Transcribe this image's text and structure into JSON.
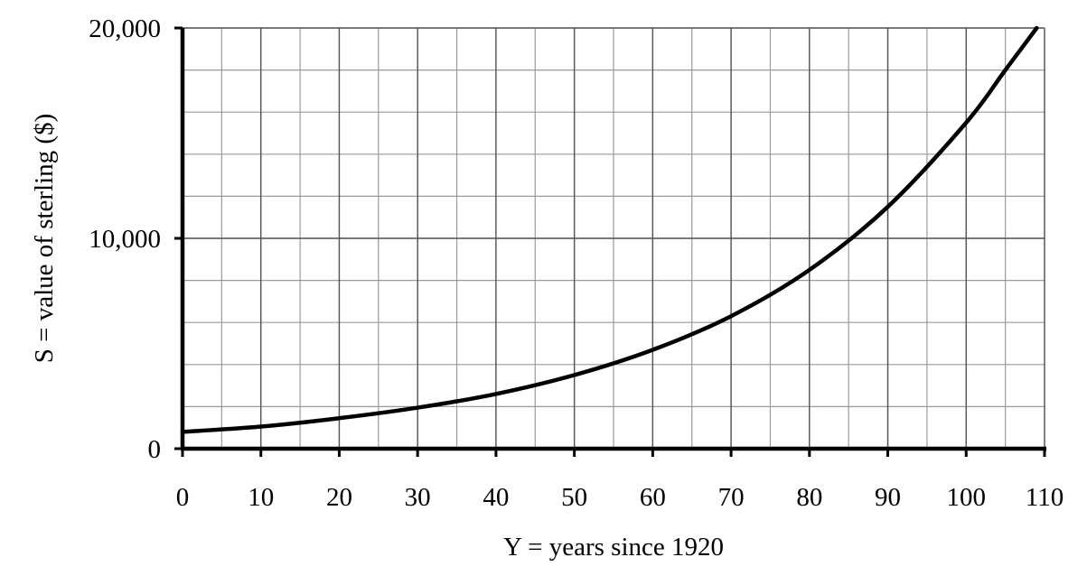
{
  "chart_data": {
    "type": "line",
    "title": "",
    "xlabel": "Y = years since 1920",
    "ylabel": "S = value of sterling ($)",
    "xlim": [
      0,
      110
    ],
    "ylim": [
      0,
      20000
    ],
    "x_ticks": [
      0,
      10,
      20,
      30,
      40,
      50,
      60,
      70,
      80,
      90,
      100,
      110
    ],
    "x_tick_labels": [
      "0",
      "10",
      "20",
      "30",
      "40",
      "50",
      "60",
      "70",
      "80",
      "90",
      "100",
      "110"
    ],
    "y_ticks": [
      0,
      10000,
      20000
    ],
    "y_tick_labels": [
      "0",
      "10,000",
      "20,000"
    ],
    "x_minor_step": 5,
    "y_minor_step": 2000,
    "grid": true,
    "legend": "none",
    "series": [
      {
        "color": "#000000",
        "x": [
          0,
          10,
          20,
          30,
          40,
          50,
          60,
          70,
          80,
          90,
          100,
          105,
          109
        ],
        "y": [
          800,
          1050,
          1450,
          1950,
          2600,
          3500,
          4700,
          6300,
          8500,
          11500,
          15500,
          18000,
          20000
        ]
      }
    ]
  }
}
